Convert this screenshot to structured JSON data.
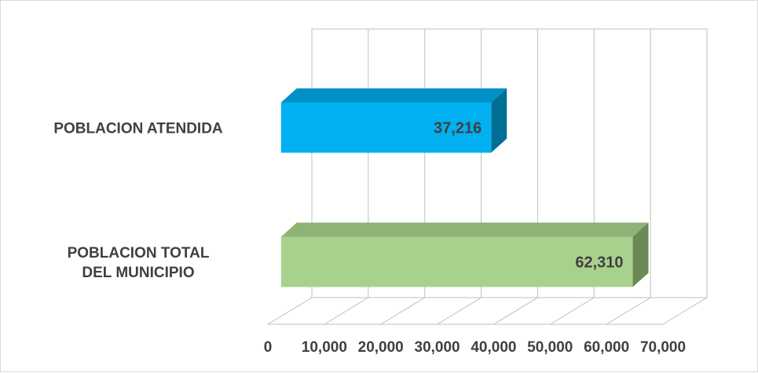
{
  "chart_data": {
    "type": "bar",
    "orientation": "horizontal",
    "style": "3d",
    "categories": [
      "POBLACION ATENDIDA",
      "POBLACION TOTAL DEL MUNICIPIO"
    ],
    "category_lines": [
      [
        "POBLACION ATENDIDA"
      ],
      [
        "POBLACION TOTAL",
        "DEL MUNICIPIO"
      ]
    ],
    "values": [
      37216,
      62310
    ],
    "value_labels": [
      "37,216",
      "62,310"
    ],
    "xlim": [
      0,
      70000
    ],
    "xticks": [
      0,
      10000,
      20000,
      30000,
      40000,
      50000,
      60000,
      70000
    ],
    "xtick_labels": [
      "0",
      "10,000",
      "20,000",
      "30,000",
      "40,000",
      "50,000",
      "60,000",
      "70,000"
    ],
    "grid": true,
    "legend": "none",
    "colors": {
      "bar_0": {
        "front": "#00b0f0",
        "top": "#0090c8",
        "side": "#006f96"
      },
      "bar_1": {
        "front": "#a9d18e",
        "top": "#8fb275",
        "side": "#6a8a55"
      },
      "grid": "#bfbfbf",
      "text": "#404040"
    }
  }
}
